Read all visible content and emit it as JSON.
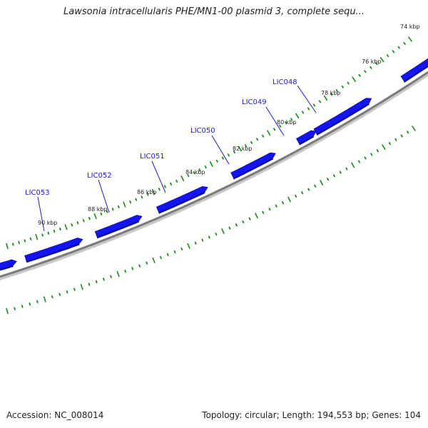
{
  "title": "Lawsonia intracellularis PHE/MN1-00 plasmid 3, complete sequ...",
  "footer": {
    "accession": "Accession: NC_008014",
    "summary": "Topology: circular; Length: 194,553 bp; Genes: 104"
  },
  "colors": {
    "gene": "#1414f0",
    "gene_dark": "#0b0ba0",
    "tick": "#1a8a1a",
    "backbone": "#808080",
    "leader": "#1a1ad6"
  },
  "tick_labels": [
    "74 kbp",
    "76 kbp",
    "78 kbp",
    "80 kbp",
    "82 kbp",
    "84 kbp",
    "86 kbp",
    "88 kbp",
    "90 kbp"
  ],
  "gene_labels": [
    "LIC048",
    "LIC049",
    "LIC050",
    "LIC051",
    "LIC052",
    "LIC053"
  ]
}
